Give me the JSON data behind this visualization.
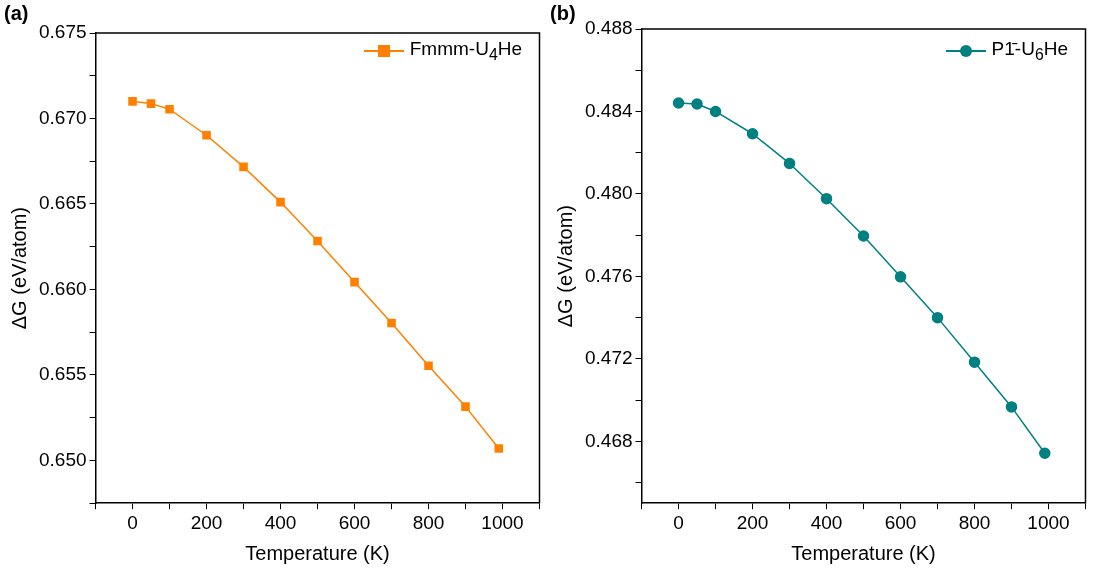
{
  "chart_data": [
    {
      "type": "line",
      "title": "(a)",
      "xlabel": "Temperature (K)",
      "ylabel": "ΔG (eV/atom)",
      "marker": "square",
      "line_style": "solid",
      "grid": false,
      "legend": "top right",
      "x": [
        0,
        50,
        100,
        200,
        300,
        400,
        500,
        600,
        700,
        800,
        900,
        990
      ],
      "series": [
        {
          "name": "Fmmm-U$_{4}$He",
          "color": "#ff8000",
          "values": [
            0.671,
            0.67087,
            0.67054,
            0.66902,
            0.66717,
            0.66511,
            0.66283,
            0.66043,
            0.65804,
            0.65554,
            0.65315,
            0.6507
          ]
        }
      ],
      "xlim": [
        -100,
        1100
      ],
      "xticks": [
        {
          "value": -100,
          "label": null
        },
        0,
        {
          "value": 100,
          "label": null
        },
        200,
        {
          "value": 300,
          "label": null
        },
        400,
        {
          "value": 500,
          "label": null
        },
        600,
        {
          "value": 700,
          "label": null
        },
        800,
        {
          "value": 900,
          "label": null
        },
        1000,
        {
          "value": 1100,
          "label": null
        }
      ],
      "ylim": [
        0.6475,
        0.675
      ],
      "yticks": [
        {
          "value": 0.6475,
          "label": null
        },
        {
          "value": 0.65,
          "label": "0.650"
        },
        {
          "value": 0.6525,
          "label": null
        },
        {
          "value": 0.655,
          "label": "0.655"
        },
        {
          "value": 0.6575,
          "label": null
        },
        {
          "value": 0.66,
          "label": "0.660"
        },
        {
          "value": 0.6625,
          "label": null
        },
        {
          "value": 0.665,
          "label": "0.665"
        },
        {
          "value": 0.6675,
          "label": null
        },
        {
          "value": 0.67,
          "label": "0.670"
        },
        {
          "value": 0.6725,
          "label": null
        },
        {
          "value": 0.675,
          "label": "0.675"
        }
      ]
    },
    {
      "type": "line",
      "title": "(b)",
      "xlabel": "Temperature (K)",
      "ylabel": "ΔG (eV/atom)",
      "marker": "circle",
      "line_style": "solid",
      "grid": false,
      "legend": "top right",
      "x": [
        0,
        50,
        100,
        200,
        300,
        400,
        500,
        600,
        700,
        800,
        900,
        990
      ],
      "series": [
        {
          "name": "P1̄-U$_{6}$He",
          "color": "#008080",
          "values": [
            0.48441,
            0.48436,
            0.484,
            0.48292,
            0.48148,
            0.47977,
            0.47796,
            0.47598,
            0.474,
            0.47184,
            0.46967,
            0.46742
          ]
        }
      ],
      "xlim": [
        -100,
        1100
      ],
      "xticks": [
        {
          "value": -100,
          "label": null
        },
        0,
        {
          "value": 100,
          "label": null
        },
        200,
        {
          "value": 300,
          "label": null
        },
        400,
        {
          "value": 500,
          "label": null
        },
        600,
        {
          "value": 700,
          "label": null
        },
        800,
        {
          "value": 900,
          "label": null
        },
        1000,
        {
          "value": 1100,
          "label": null
        }
      ],
      "ylim": [
        0.465,
        0.488
      ],
      "yticks": [
        {
          "value": 0.466,
          "label": null
        },
        {
          "value": 0.468,
          "label": "0.468"
        },
        {
          "value": 0.47,
          "label": null
        },
        {
          "value": 0.472,
          "label": "0.472"
        },
        {
          "value": 0.474,
          "label": null
        },
        {
          "value": 0.476,
          "label": "0.476"
        },
        {
          "value": 0.478,
          "label": null
        },
        {
          "value": 0.48,
          "label": "0.480"
        },
        {
          "value": 0.482,
          "label": null
        },
        {
          "value": 0.484,
          "label": "0.484"
        },
        {
          "value": 0.486,
          "label": null
        },
        {
          "value": 0.488,
          "label": "0.488"
        }
      ]
    }
  ]
}
